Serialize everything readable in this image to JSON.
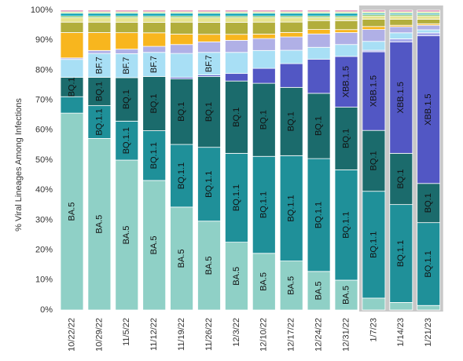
{
  "chart_data": {
    "type": "bar",
    "stacked": true,
    "orientation": "vertical",
    "ylabel": "% Viral Lineages Among Infections",
    "xlabel": "",
    "ylim": [
      0,
      100
    ],
    "yticks": [
      "0%",
      "10%",
      "20%",
      "30%",
      "40%",
      "50%",
      "60%",
      "70%",
      "80%",
      "90%",
      "100%"
    ],
    "categories": [
      "10/22/22",
      "10/29/22",
      "11/5/22",
      "11/12/22",
      "11/19/22",
      "11/26/22",
      "12/3/22",
      "12/10/22",
      "12/17/22",
      "12/24/22",
      "12/31/22",
      "1/7/23",
      "1/14/23",
      "1/21/23"
    ],
    "highlight_categories": [
      "1/7/23",
      "1/14/23",
      "1/21/23"
    ],
    "highlight_color": "#c8c8c8",
    "series": [
      {
        "name": "BA.5",
        "color": "#8fd0c6",
        "values": [
          66,
          57.5,
          50,
          43,
          34.5,
          29.5,
          22.5,
          19,
          16.5,
          13,
          10,
          4,
          2.5,
          1.5
        ]
      },
      {
        "name": "BQ.1.1",
        "color": "#1f9099",
        "values": [
          5.5,
          11,
          13,
          16.5,
          21,
          24.5,
          29.5,
          32.5,
          35.5,
          38,
          37,
          36,
          32.5,
          27.5
        ]
      },
      {
        "name": "BQ.1",
        "color": "#1b6b6c",
        "values": [
          6.5,
          9.5,
          14.5,
          18,
          22,
          23.5,
          24,
          24.5,
          23,
          22,
          21,
          20.5,
          17,
          13
        ]
      },
      {
        "name": "XBB.1.5",
        "color": "#5257c4",
        "values": [
          0,
          0,
          0,
          0,
          0.5,
          0.5,
          2.5,
          5,
          8,
          11.5,
          17,
          26.5,
          37,
          49
        ]
      },
      {
        "name": "",
        "color": "#a7aaeb",
        "values": [
          0,
          0,
          0,
          0,
          0,
          0,
          0,
          0,
          0,
          0,
          0,
          0.5,
          1,
          1
        ]
      },
      {
        "name": "BF.7",
        "color": "#a8dff5",
        "values": [
          6,
          8,
          8,
          8,
          8,
          7.5,
          7,
          6,
          4.5,
          4,
          4,
          3,
          2,
          1
        ]
      },
      {
        "name": "",
        "color": "#b0b0e6",
        "values": [
          0.5,
          1,
          1.5,
          2,
          3,
          3.5,
          4,
          4,
          4.5,
          4.5,
          4,
          4,
          2,
          1.5
        ]
      },
      {
        "name": "",
        "color": "#f8b61e",
        "values": [
          8.5,
          6,
          5.5,
          4.5,
          3.5,
          2.5,
          2,
          1.5,
          1.5,
          1.5,
          1,
          1,
          0.5,
          0.5
        ]
      },
      {
        "name": "",
        "color": "#b2ae3c",
        "values": [
          3.5,
          3.5,
          3.5,
          3.5,
          4,
          4,
          4,
          4,
          3.5,
          3,
          3,
          2.5,
          2,
          1.5
        ]
      },
      {
        "name": "",
        "color": "#e7e38f",
        "values": [
          1.5,
          1.5,
          1.5,
          1.5,
          1.5,
          1.5,
          1.5,
          1.5,
          1.5,
          1,
          1,
          1,
          1,
          1
        ]
      },
      {
        "name": "",
        "color": "#7fbe4f",
        "values": [
          0.5,
          0.5,
          0.5,
          0.5,
          0.5,
          0.5,
          0.5,
          0.5,
          0.5,
          0.5,
          0.5,
          0.5,
          0.5,
          0.5
        ]
      },
      {
        "name": "",
        "color": "#1aa8b6",
        "values": [
          1,
          1,
          1,
          1,
          1,
          1,
          1,
          1,
          1,
          1,
          1,
          0.5,
          0.5,
          0.5
        ]
      },
      {
        "name": "",
        "color": "#c5e88d",
        "values": [
          0.5,
          0.5,
          0.5,
          0.5,
          0.5,
          0.5,
          0.5,
          0.5,
          0.5,
          0.5,
          0.5,
          0.5,
          0.5,
          0.5
        ]
      },
      {
        "name": "",
        "color": "#d96fa3",
        "values": [
          0.5,
          0.5,
          0.5,
          0.5,
          0.5,
          0.5,
          0.5,
          0.5,
          0.5,
          0.5,
          0.5,
          0.5,
          0.5,
          0.5
        ]
      }
    ],
    "bar_labels": [
      {
        "category": 0,
        "series": 0,
        "text": "BA.5"
      },
      {
        "category": 0,
        "series": 2,
        "text": "BQ.1"
      },
      {
        "category": 1,
        "series": 0,
        "text": "BA.5"
      },
      {
        "category": 1,
        "series": 1,
        "text": "BQ.1.1"
      },
      {
        "category": 1,
        "series": 2,
        "text": "BQ.1"
      },
      {
        "category": 1,
        "series": 5,
        "text": "BF.7"
      },
      {
        "category": 2,
        "series": 0,
        "text": "BA.5"
      },
      {
        "category": 2,
        "series": 1,
        "text": "BQ.1.1"
      },
      {
        "category": 2,
        "series": 2,
        "text": "BQ.1"
      },
      {
        "category": 2,
        "series": 5,
        "text": "BF.7"
      },
      {
        "category": 3,
        "series": 0,
        "text": "BA.5"
      },
      {
        "category": 3,
        "series": 1,
        "text": "BQ.1.1"
      },
      {
        "category": 3,
        "series": 2,
        "text": "BQ.1"
      },
      {
        "category": 3,
        "series": 5,
        "text": "BF.7"
      },
      {
        "category": 4,
        "series": 0,
        "text": "BA.5"
      },
      {
        "category": 4,
        "series": 1,
        "text": "BQ.1.1"
      },
      {
        "category": 4,
        "series": 2,
        "text": "BQ.1"
      },
      {
        "category": 5,
        "series": 0,
        "text": "BA.5"
      },
      {
        "category": 5,
        "series": 1,
        "text": "BQ.1.1"
      },
      {
        "category": 5,
        "series": 2,
        "text": "BQ.1"
      },
      {
        "category": 5,
        "series": 5,
        "text": "BF.7"
      },
      {
        "category": 6,
        "series": 0,
        "text": "BA.5"
      },
      {
        "category": 6,
        "series": 1,
        "text": "BQ.1.1"
      },
      {
        "category": 6,
        "series": 2,
        "text": "BQ.1"
      },
      {
        "category": 7,
        "series": 0,
        "text": "BA.5"
      },
      {
        "category": 7,
        "series": 1,
        "text": "BQ.1.1"
      },
      {
        "category": 7,
        "series": 2,
        "text": "BQ.1"
      },
      {
        "category": 8,
        "series": 0,
        "text": "BA.5"
      },
      {
        "category": 8,
        "series": 1,
        "text": "BQ.1.1"
      },
      {
        "category": 8,
        "series": 2,
        "text": "BQ.1"
      },
      {
        "category": 9,
        "series": 0,
        "text": "BA.5"
      },
      {
        "category": 9,
        "series": 1,
        "text": "BQ.1.1"
      },
      {
        "category": 9,
        "series": 2,
        "text": "BQ.1"
      },
      {
        "category": 10,
        "series": 0,
        "text": "BA.5"
      },
      {
        "category": 10,
        "series": 1,
        "text": "BQ.1.1"
      },
      {
        "category": 10,
        "series": 2,
        "text": "BQ.1"
      },
      {
        "category": 10,
        "series": 3,
        "text": "XBB.1.5"
      },
      {
        "category": 11,
        "series": 1,
        "text": "BQ.1.1"
      },
      {
        "category": 11,
        "series": 2,
        "text": "BQ.1"
      },
      {
        "category": 11,
        "series": 3,
        "text": "XBB.1.5"
      },
      {
        "category": 12,
        "series": 1,
        "text": "BQ.1.1"
      },
      {
        "category": 12,
        "series": 2,
        "text": "BQ.1"
      },
      {
        "category": 12,
        "series": 3,
        "text": "XBB.1.5"
      },
      {
        "category": 13,
        "series": 1,
        "text": "BQ.1.1"
      },
      {
        "category": 13,
        "series": 2,
        "text": "BQ.1"
      },
      {
        "category": 13,
        "series": 3,
        "text": "XBB.1.5"
      }
    ],
    "grid": false,
    "legend": "none"
  }
}
